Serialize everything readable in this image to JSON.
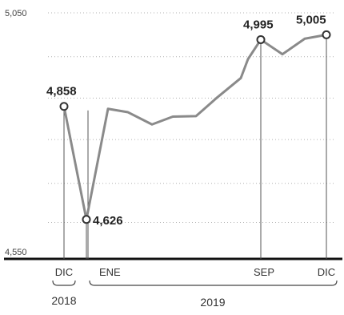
{
  "chart_data": {
    "type": "line",
    "ylim": [
      4550,
      5050
    ],
    "y_ticks": [
      "5,050",
      "4,550"
    ],
    "grid": true,
    "x_tick_labels": [
      {
        "label": "DIC",
        "index": 0
      },
      {
        "label": "ENE",
        "index": 2
      },
      {
        "label": "SEP",
        "index": 10
      },
      {
        "label": "DIC",
        "index": 13
      }
    ],
    "year_groups": [
      {
        "label": "2018",
        "from": 0,
        "to": 0
      },
      {
        "label": "2019",
        "from": 2,
        "to": 13
      }
    ],
    "x": [
      0,
      1,
      2,
      3,
      4,
      5,
      6,
      7,
      8,
      9,
      10,
      11,
      12,
      13
    ],
    "values": [
      4858,
      4626,
      4853,
      4846,
      4821,
      4837,
      4838,
      4877,
      4916,
      4955,
      4995,
      4965,
      4997,
      5005
    ],
    "data_labels": [
      {
        "index": 0,
        "text": "4,858"
      },
      {
        "index": 1,
        "text": "4,626"
      },
      {
        "index": 10,
        "text": "4,995"
      },
      {
        "index": 13,
        "text": "5,005"
      }
    ],
    "colors": {
      "line": "#8a8a8a",
      "axis": "#111111",
      "grid": "#b0b0b0",
      "marker_stroke": "#333333",
      "text": "#222222"
    }
  }
}
